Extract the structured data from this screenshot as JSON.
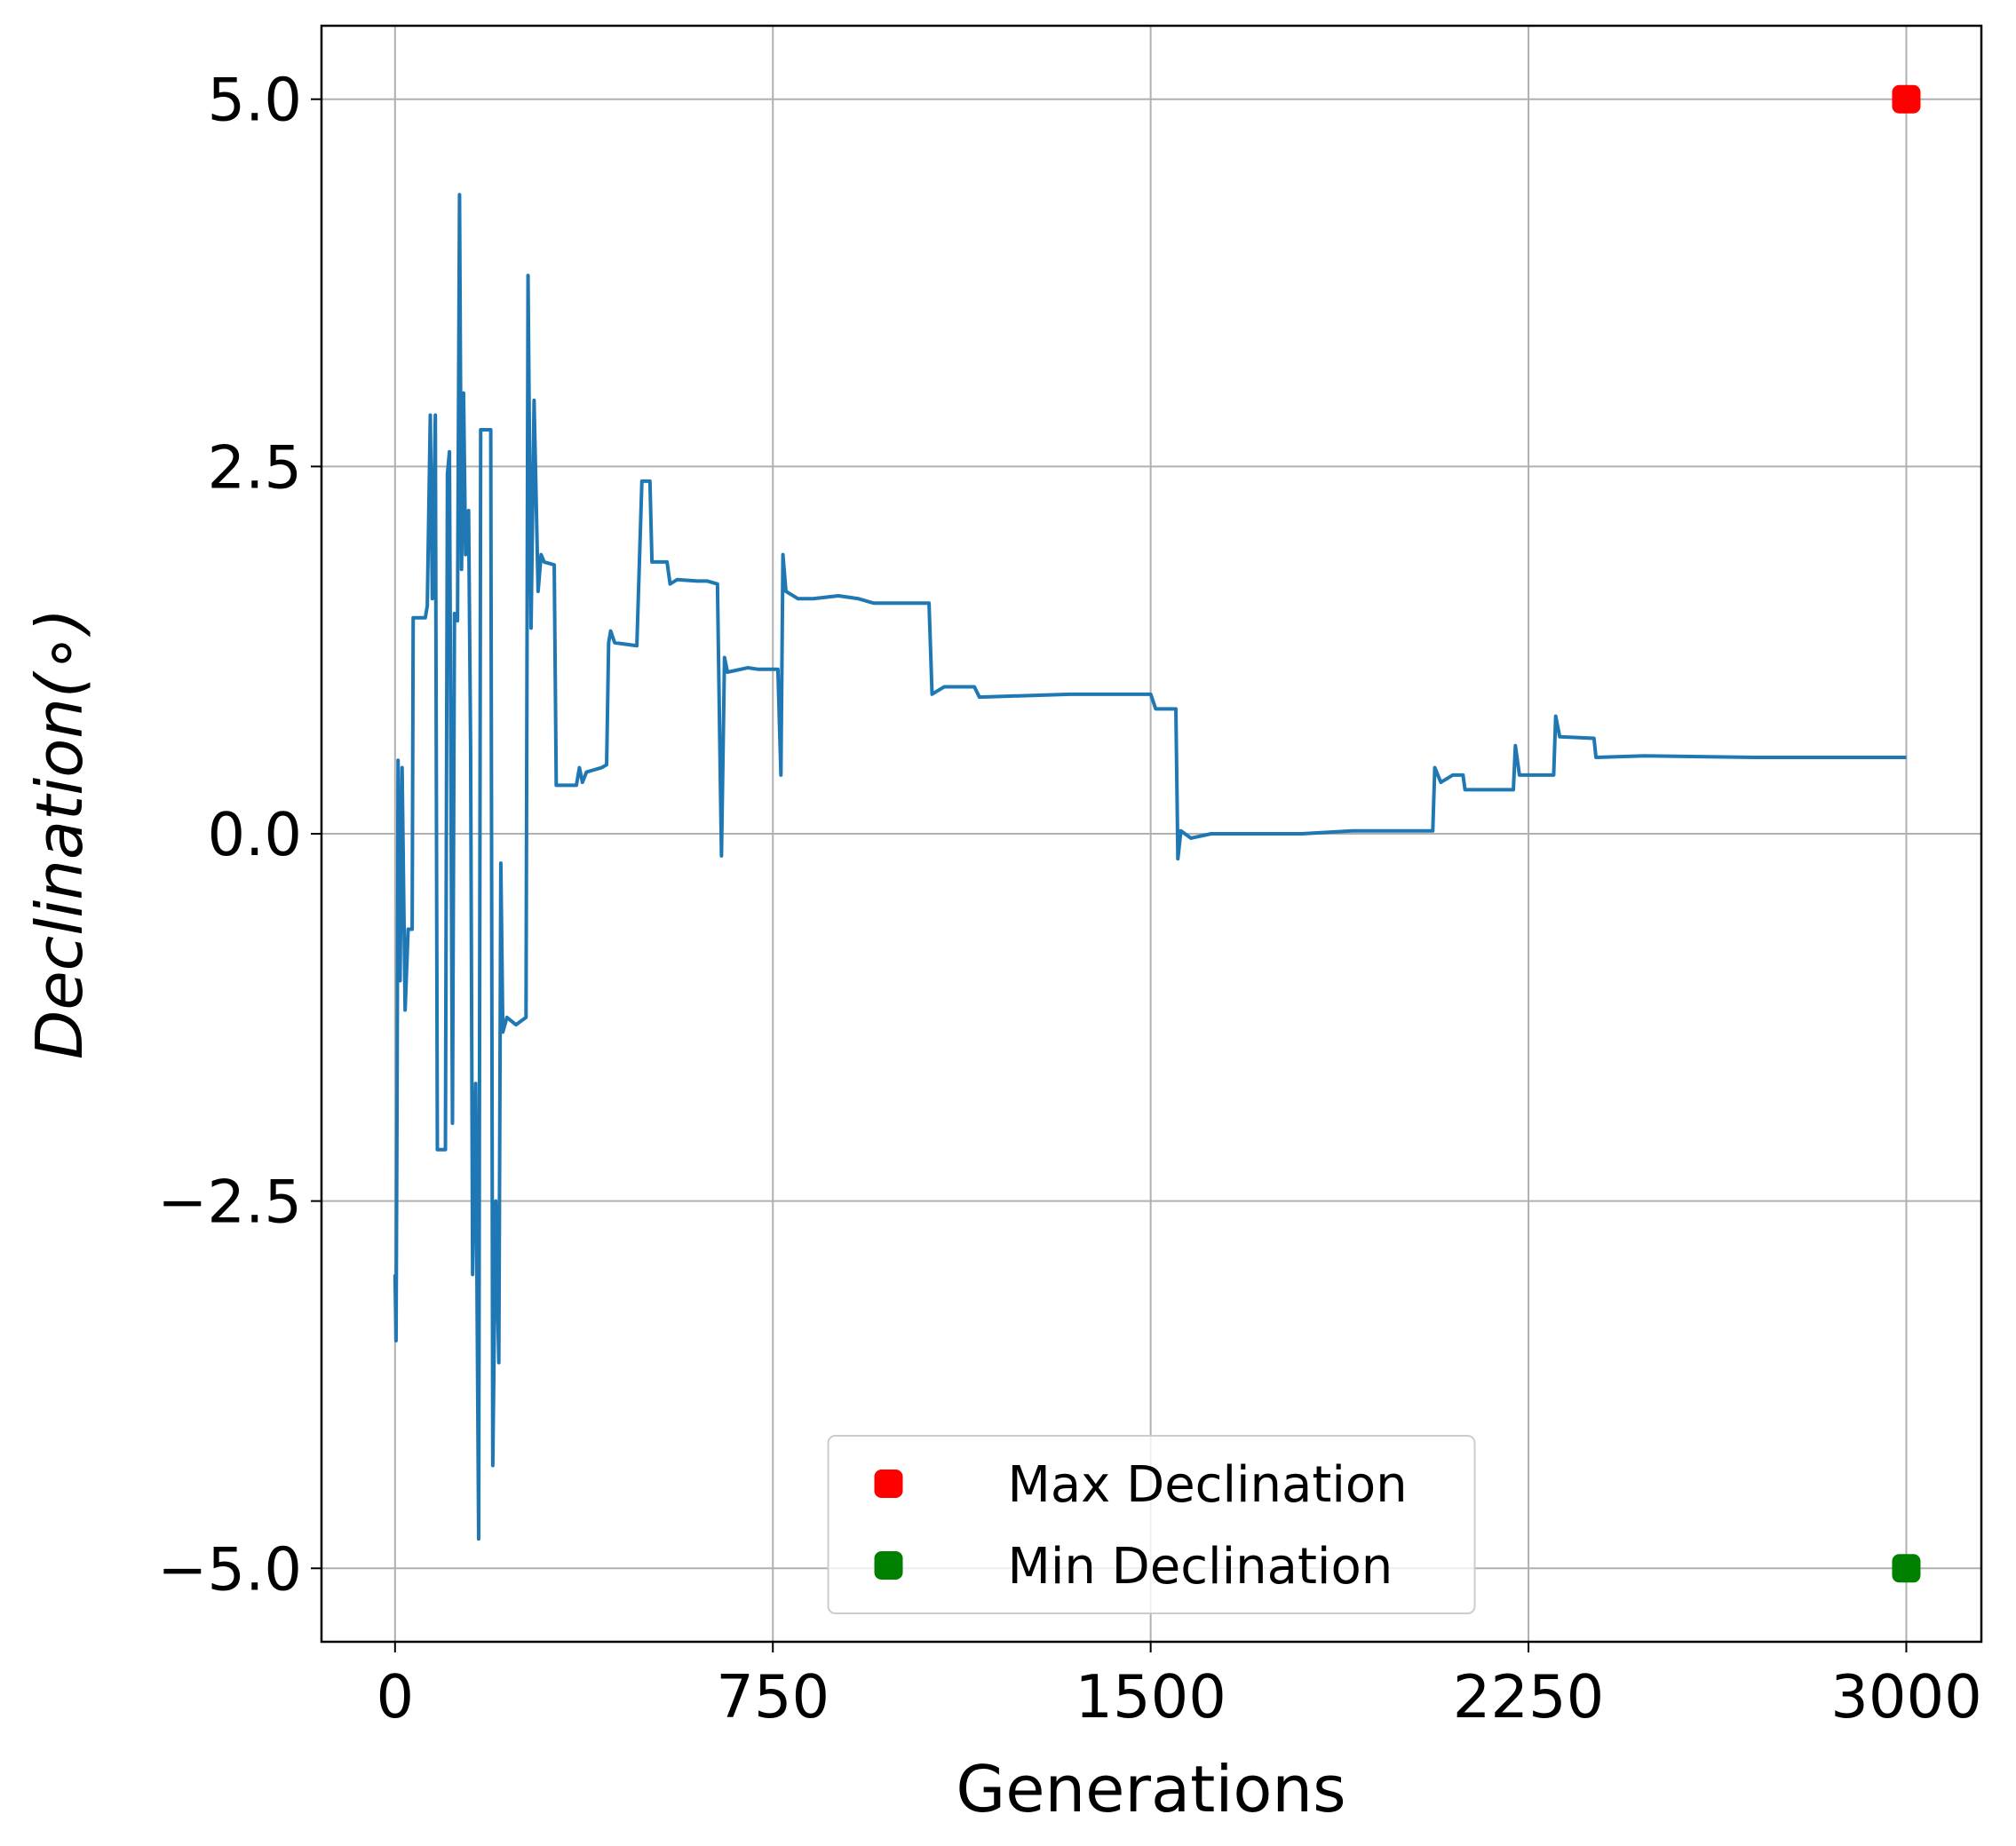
{
  "chart_data": {
    "type": "line",
    "xlabel": "Generations",
    "ylabel": "Declination(∘)",
    "xlim": [
      -146,
      3149
    ],
    "ylim": [
      -5.5,
      5.5
    ],
    "xticks": [
      0,
      750,
      1500,
      2250,
      3000
    ],
    "yticks": [
      {
        "value": -5,
        "label": "−5.0"
      },
      {
        "value": -2.5,
        "label": "−2.5"
      },
      {
        "value": 0,
        "label": "0.0"
      },
      {
        "value": 2.5,
        "label": "2.5"
      },
      {
        "value": 5,
        "label": "5.0"
      }
    ],
    "grid": true,
    "legend": "lower center",
    "color": "#1f77b4",
    "x": [
      0,
      2,
      4,
      6,
      10,
      14,
      20,
      26,
      34,
      36,
      60,
      64,
      70,
      74,
      80,
      84,
      100,
      104,
      108,
      114,
      118,
      124,
      128,
      132,
      136,
      140,
      146,
      150,
      154,
      160,
      166,
      170,
      190,
      194,
      200,
      206,
      210,
      214,
      222,
      240,
      260,
      264,
      270,
      276,
      284,
      290,
      296,
      316,
      320,
      360,
      366,
      372,
      380,
      410,
      420,
      424,
      428,
      436,
      480,
      490,
      506,
      510,
      516,
      540,
      546,
      560,
      600,
      620,
      640,
      648,
      654,
      660,
      700,
      720,
      760,
      766,
      770,
      776,
      800,
      830,
      880,
      920,
      950,
      1060,
      1066,
      1090,
      1150,
      1160,
      1340,
      1500,
      1510,
      1550,
      1554,
      1560,
      1580,
      1620,
      1800,
      1900,
      2060,
      2064,
      2076,
      2100,
      2120,
      2124,
      2200,
      2220,
      2224,
      2232,
      2300,
      2304,
      2312,
      2380,
      2384,
      2480,
      2700,
      3000
    ],
    "values": [
      -3.0,
      -3.45,
      -1.8,
      0.5,
      -1.0,
      0.45,
      -1.2,
      -0.65,
      -0.65,
      1.47,
      1.47,
      1.55,
      2.85,
      1.6,
      2.85,
      -2.15,
      -2.15,
      2.45,
      2.6,
      -1.97,
      1.5,
      1.45,
      4.35,
      1.8,
      3.0,
      1.9,
      2.2,
      0.6,
      -3.0,
      -1.7,
      -4.8,
      2.75,
      2.75,
      -4.3,
      -2.5,
      -3.6,
      -0.2,
      -1.35,
      -1.25,
      -1.3,
      -1.25,
      3.8,
      1.4,
      2.95,
      1.65,
      1.9,
      1.85,
      1.83,
      0.33,
      0.33,
      0.45,
      0.35,
      0.42,
      0.45,
      0.47,
      1.3,
      1.38,
      1.3,
      1.28,
      2.4,
      2.4,
      1.85,
      1.85,
      1.85,
      1.7,
      1.73,
      1.72,
      1.72,
      1.7,
      -0.15,
      1.2,
      1.1,
      1.13,
      1.12,
      1.12,
      0.4,
      1.9,
      1.65,
      1.6,
      1.6,
      1.62,
      1.6,
      1.57,
      1.57,
      0.95,
      1.0,
      1.0,
      0.93,
      0.95,
      0.95,
      0.85,
      0.85,
      -0.17,
      0.02,
      -0.03,
      0.0,
      0.0,
      0.02,
      0.02,
      0.45,
      0.35,
      0.4,
      0.4,
      0.3,
      0.3,
      0.3,
      0.6,
      0.4,
      0.4,
      0.8,
      0.66,
      0.65,
      0.52,
      0.53,
      0.52,
      0.52
    ],
    "markers": [
      {
        "name": "Max Declination",
        "color": "#ff0000",
        "x": [
          3000
        ],
        "values": [
          5
        ]
      },
      {
        "name": "Min Declination",
        "color": "#008000",
        "x": [
          3000
        ],
        "values": [
          -5
        ]
      }
    ]
  }
}
